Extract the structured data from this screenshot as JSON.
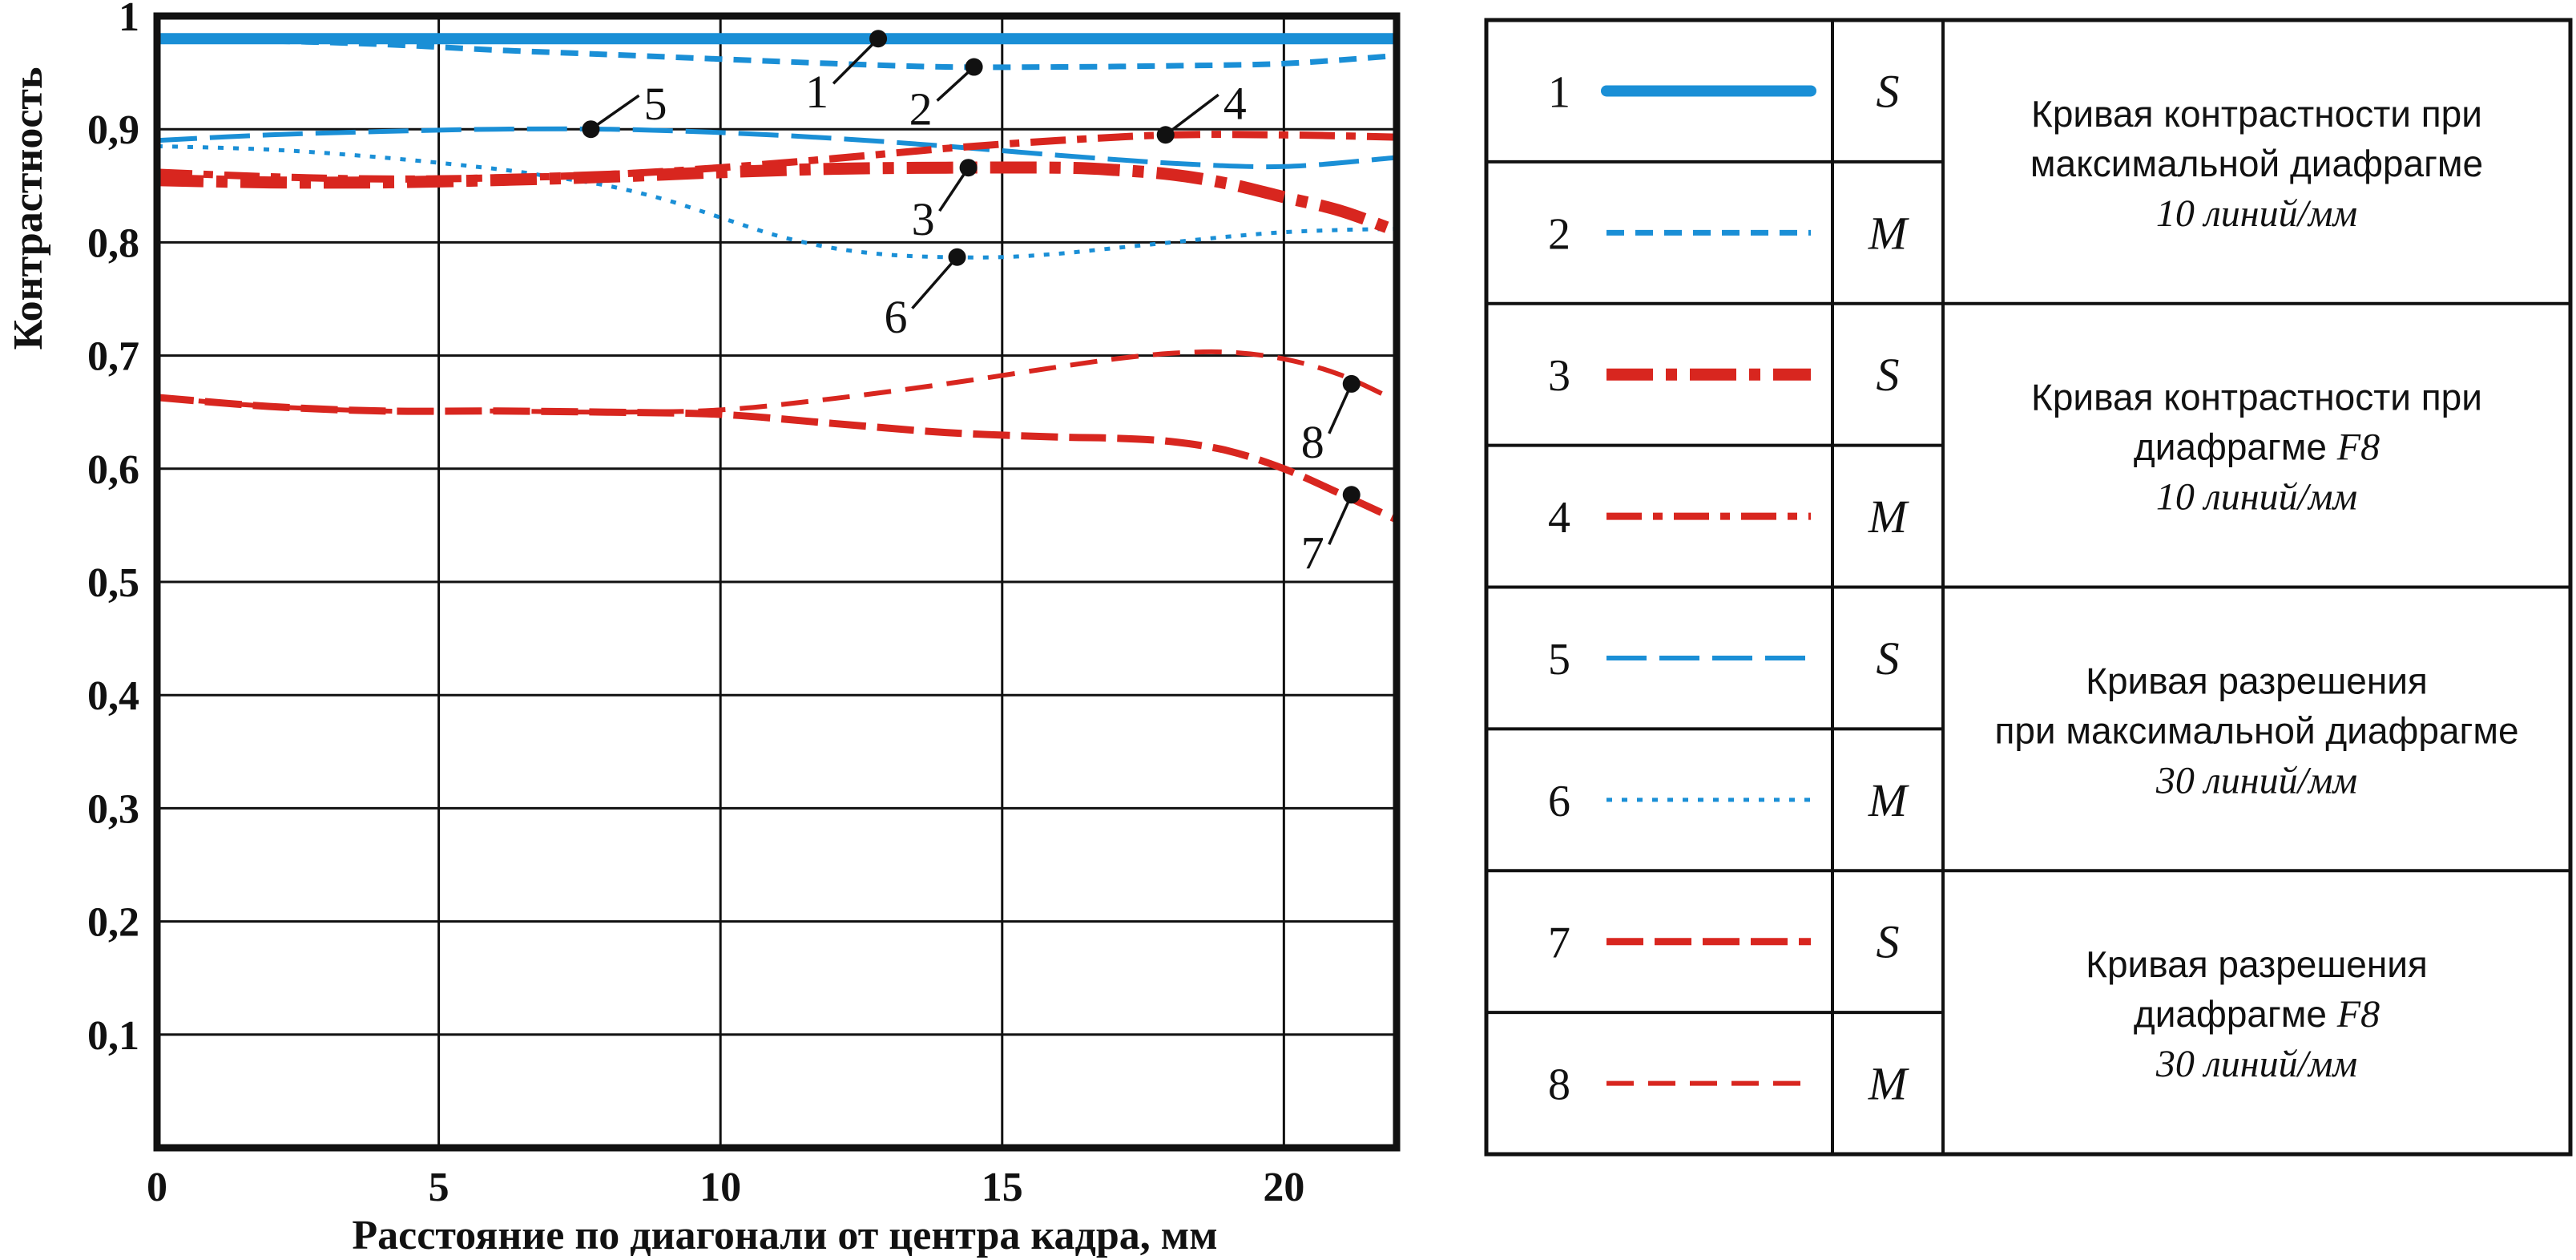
{
  "chart_data": {
    "type": "line",
    "xlabel": "Расстояние по диагонали от центра кадра, мм",
    "ylabel": "Контрастность",
    "xlim": [
      0,
      22
    ],
    "ylim": [
      0,
      1
    ],
    "x_ticks": [
      {
        "value": 0,
        "label": "0"
      },
      {
        "value": 5,
        "label": "5"
      },
      {
        "value": 10,
        "label": "10"
      },
      {
        "value": 15,
        "label": "15"
      },
      {
        "value": 20,
        "label": "20"
      }
    ],
    "y_ticks": [
      {
        "value": 0.1,
        "label": "0,1"
      },
      {
        "value": 0.2,
        "label": "0,2"
      },
      {
        "value": 0.3,
        "label": "0,3"
      },
      {
        "value": 0.4,
        "label": "0,4"
      },
      {
        "value": 0.5,
        "label": "0,5"
      },
      {
        "value": 0.6,
        "label": "0,6"
      },
      {
        "value": 0.7,
        "label": "0,7"
      },
      {
        "value": 0.8,
        "label": "0,8"
      },
      {
        "value": 0.9,
        "label": "0,9"
      },
      {
        "value": 1.0,
        "label": "1"
      }
    ],
    "grid": true,
    "legend_position": "right",
    "series": [
      {
        "id": "1",
        "type_label": "S",
        "color": "#1a8fd6",
        "style": "solid-thick",
        "x": [
          0,
          2,
          5,
          8,
          10,
          12,
          14,
          16,
          18,
          20,
          22
        ],
        "y": [
          0.98,
          0.98,
          0.98,
          0.98,
          0.98,
          0.98,
          0.98,
          0.98,
          0.98,
          0.98,
          0.98
        ],
        "callout": {
          "x": 12.8,
          "y": 0.98
        }
      },
      {
        "id": "2",
        "type_label": "M",
        "color": "#1a8fd6",
        "style": "dash-medium",
        "x": [
          0,
          2,
          4,
          6,
          8,
          10,
          12,
          14,
          16,
          18,
          20,
          22
        ],
        "y": [
          0.98,
          0.978,
          0.975,
          0.97,
          0.966,
          0.962,
          0.958,
          0.955,
          0.955,
          0.956,
          0.958,
          0.965
        ],
        "callout": {
          "x": 14.5,
          "y": 0.955
        }
      },
      {
        "id": "3",
        "type_label": "S",
        "color": "#d8261f",
        "style": "dashdot-thick",
        "x": [
          0,
          2,
          4,
          6,
          8,
          10,
          12,
          14,
          16,
          17,
          18,
          19,
          20,
          21,
          22
        ],
        "y": [
          0.855,
          0.853,
          0.853,
          0.855,
          0.858,
          0.862,
          0.865,
          0.866,
          0.866,
          0.864,
          0.86,
          0.852,
          0.84,
          0.828,
          0.81
        ],
        "callout": {
          "x": 14.4,
          "y": 0.866
        }
      },
      {
        "id": "4",
        "type_label": "M",
        "color": "#d8261f",
        "style": "dashdot-medium",
        "x": [
          0,
          2,
          4,
          6,
          8,
          10,
          12,
          14,
          16,
          18,
          20,
          22
        ],
        "y": [
          0.862,
          0.858,
          0.856,
          0.857,
          0.86,
          0.866,
          0.874,
          0.883,
          0.89,
          0.895,
          0.895,
          0.893
        ],
        "callout": {
          "x": 17.9,
          "y": 0.895
        }
      },
      {
        "id": "5",
        "type_label": "S",
        "color": "#1a8fd6",
        "style": "longdash",
        "x": [
          0,
          2,
          4,
          6,
          8,
          10,
          12,
          14,
          16,
          18,
          20,
          22
        ],
        "y": [
          0.89,
          0.895,
          0.898,
          0.9,
          0.9,
          0.897,
          0.892,
          0.885,
          0.877,
          0.87,
          0.867,
          0.875
        ],
        "callout": {
          "x": 7.7,
          "y": 0.9
        }
      },
      {
        "id": "6",
        "type_label": "M",
        "color": "#1a8fd6",
        "style": "dotted",
        "x": [
          0,
          2,
          4,
          6,
          7,
          8,
          9,
          10,
          11,
          12,
          13,
          14,
          15,
          16,
          17,
          18,
          19,
          20,
          21,
          22
        ],
        "y": [
          0.885,
          0.882,
          0.875,
          0.865,
          0.858,
          0.85,
          0.838,
          0.822,
          0.806,
          0.795,
          0.789,
          0.787,
          0.787,
          0.79,
          0.795,
          0.8,
          0.805,
          0.809,
          0.811,
          0.812
        ],
        "callout": {
          "x": 14.2,
          "y": 0.787
        }
      },
      {
        "id": "7",
        "type_label": "S",
        "color": "#d8261f",
        "style": "longdash-thick",
        "x": [
          0,
          2,
          4,
          6,
          8,
          10,
          12,
          14,
          16,
          17,
          18,
          19,
          20,
          21,
          22
        ],
        "y": [
          0.663,
          0.655,
          0.651,
          0.651,
          0.65,
          0.648,
          0.64,
          0.632,
          0.628,
          0.627,
          0.624,
          0.616,
          0.6,
          0.578,
          0.555
        ],
        "callout": {
          "x": 21.2,
          "y": 0.577
        }
      },
      {
        "id": "8",
        "type_label": "M",
        "color": "#d8261f",
        "style": "dash-thin",
        "x": [
          0,
          2,
          4,
          6,
          8,
          10,
          12,
          14,
          16,
          17,
          18,
          19,
          20,
          21,
          22
        ],
        "y": [
          0.663,
          0.655,
          0.651,
          0.651,
          0.65,
          0.652,
          0.662,
          0.675,
          0.69,
          0.697,
          0.702,
          0.703,
          0.697,
          0.683,
          0.66
        ],
        "callout": {
          "x": 21.2,
          "y": 0.675
        }
      }
    ],
    "legend_groups": [
      {
        "series": [
          "1",
          "2"
        ],
        "line1": "Кривая контрастности при",
        "line2": "максимальной диафрагме",
        "line3": "10 линий/мм"
      },
      {
        "series": [
          "3",
          "4"
        ],
        "line1": "Кривая контрастности при",
        "line2": "диафрагме ",
        "line2_italic": "F8",
        "line3": "10 линий/мм"
      },
      {
        "series": [
          "5",
          "6"
        ],
        "line1": "Кривая разрешения",
        "line2": "при максимальной диафрагме",
        "line3": "30 линий/мм"
      },
      {
        "series": [
          "7",
          "8"
        ],
        "line1": "Кривая разрешения",
        "line2": "диафрагме ",
        "line2_italic": "F8",
        "line3": "30 линий/мм"
      }
    ]
  }
}
